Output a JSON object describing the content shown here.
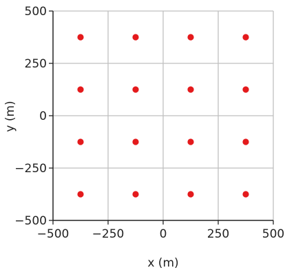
{
  "chart_data": {
    "type": "scatter",
    "title": "",
    "xlabel": "x (m)",
    "ylabel": "y (m)",
    "xlim": [
      -500,
      500
    ],
    "ylim": [
      -500,
      500
    ],
    "xticks": [
      -500,
      -250,
      0,
      250,
      500
    ],
    "yticks": [
      -500,
      -250,
      0,
      250,
      500
    ],
    "xtick_labels": [
      "−500",
      "−250",
      "0",
      "250",
      "500"
    ],
    "ytick_labels": [
      "−500",
      "−250",
      "0",
      "250",
      "500"
    ],
    "grid": true,
    "legend": "none",
    "point_color": "#e41a1c",
    "grid_color": "#bfbfbf",
    "axis_color": "#222222",
    "series": [
      {
        "x": [
          -375,
          -125,
          125,
          375,
          -375,
          -125,
          125,
          375,
          -375,
          -125,
          125,
          375,
          -375,
          -125,
          125,
          375
        ],
        "y": [
          375,
          375,
          375,
          375,
          125,
          125,
          125,
          125,
          -125,
          -125,
          -125,
          -125,
          -375,
          -375,
          -375,
          -375
        ]
      }
    ]
  }
}
